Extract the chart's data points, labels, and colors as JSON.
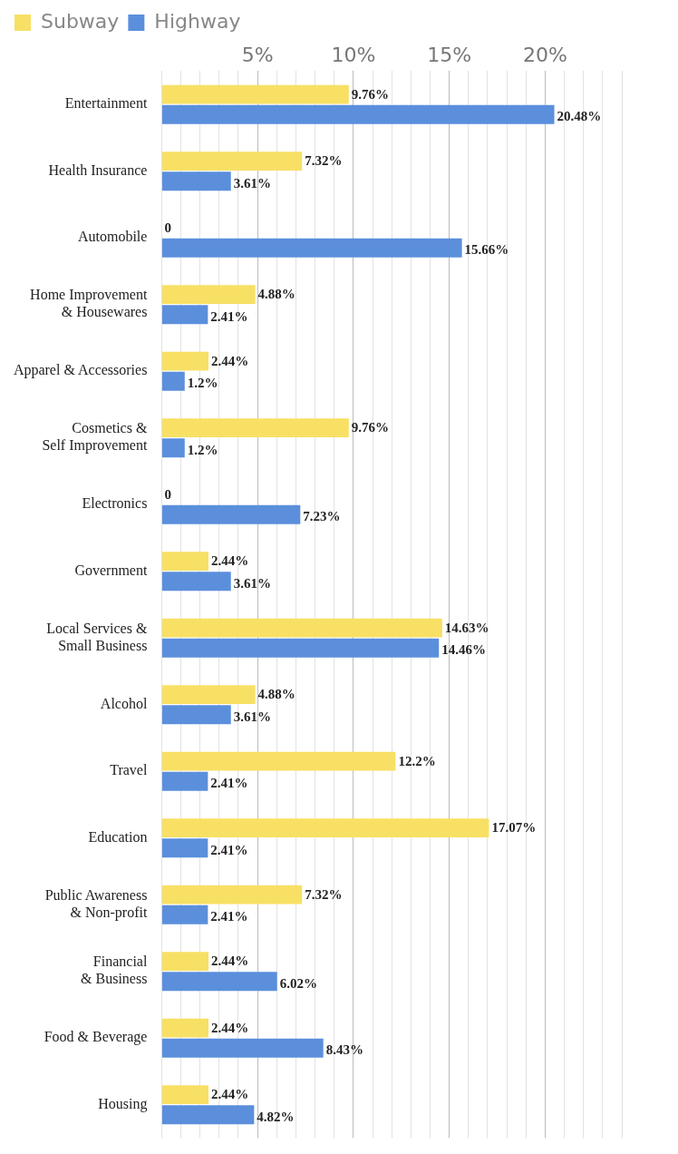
{
  "chart_data": {
    "type": "bar",
    "orientation": "horizontal",
    "categories": [
      "Entertainment",
      "Health Insurance",
      "Automobile",
      "Home Improvement\n& Housewares",
      "Apparel & Accessories",
      "Cosmetics &\nSelf Improvement",
      "Electronics",
      "Government",
      "Local Services &\nSmall Business",
      "Alcohol",
      "Travel",
      "Education",
      "Public Awareness\n& Non-profit",
      "Financial\n& Business",
      "Food & Beverage",
      "Housing"
    ],
    "series": [
      {
        "name": "Subway",
        "color": "#f8e065",
        "values": [
          9.76,
          7.32,
          0,
          4.88,
          2.44,
          9.76,
          0,
          2.44,
          14.63,
          4.88,
          12.2,
          17.07,
          7.32,
          2.44,
          2.44,
          2.44
        ],
        "value_labels": [
          "9.76%",
          "7.32%",
          "0",
          "4.88%",
          "2.44%",
          "9.76%",
          "0",
          "2.44%",
          "14.63%",
          "4.88%",
          "12.2%",
          "17.07%",
          "7.32%",
          "2.44%",
          "2.44%",
          "2.44%"
        ]
      },
      {
        "name": "Highway",
        "color": "#5b8fdc",
        "values": [
          20.48,
          3.61,
          15.66,
          2.41,
          1.2,
          1.2,
          7.23,
          3.61,
          14.46,
          3.61,
          2.41,
          2.41,
          2.41,
          6.02,
          8.43,
          4.82
        ],
        "value_labels": [
          "20.48%",
          "3.61%",
          "15.66%",
          "2.41%",
          "1.2%",
          "1.2%",
          "7.23%",
          "3.61%",
          "14.46%",
          "3.61%",
          "2.41%",
          "2.41%",
          "2.41%",
          "6.02%",
          "8.43%",
          "4.82%"
        ]
      }
    ],
    "xlim": [
      0,
      24
    ],
    "xticks": [
      {
        "value": 0,
        "label": null
      },
      {
        "value": 1,
        "label": null
      },
      {
        "value": 2,
        "label": null
      },
      {
        "value": 3,
        "label": null
      },
      {
        "value": 4,
        "label": null
      },
      {
        "value": 5,
        "label": "5%"
      },
      {
        "value": 6,
        "label": null
      },
      {
        "value": 7,
        "label": null
      },
      {
        "value": 8,
        "label": null
      },
      {
        "value": 9,
        "label": null
      },
      {
        "value": 10,
        "label": "10%"
      },
      {
        "value": 11,
        "label": null
      },
      {
        "value": 12,
        "label": null
      },
      {
        "value": 13,
        "label": null
      },
      {
        "value": 14,
        "label": null
      },
      {
        "value": 15,
        "label": "15%"
      },
      {
        "value": 16,
        "label": null
      },
      {
        "value": 17,
        "label": null
      },
      {
        "value": 18,
        "label": null
      },
      {
        "value": 19,
        "label": null
      },
      {
        "value": 20,
        "label": "20%"
      },
      {
        "value": 21,
        "label": null
      },
      {
        "value": 22,
        "label": null
      },
      {
        "value": 23,
        "label": null
      },
      {
        "value": 24,
        "label": null
      }
    ],
    "grid": "x",
    "legend": "top left"
  }
}
